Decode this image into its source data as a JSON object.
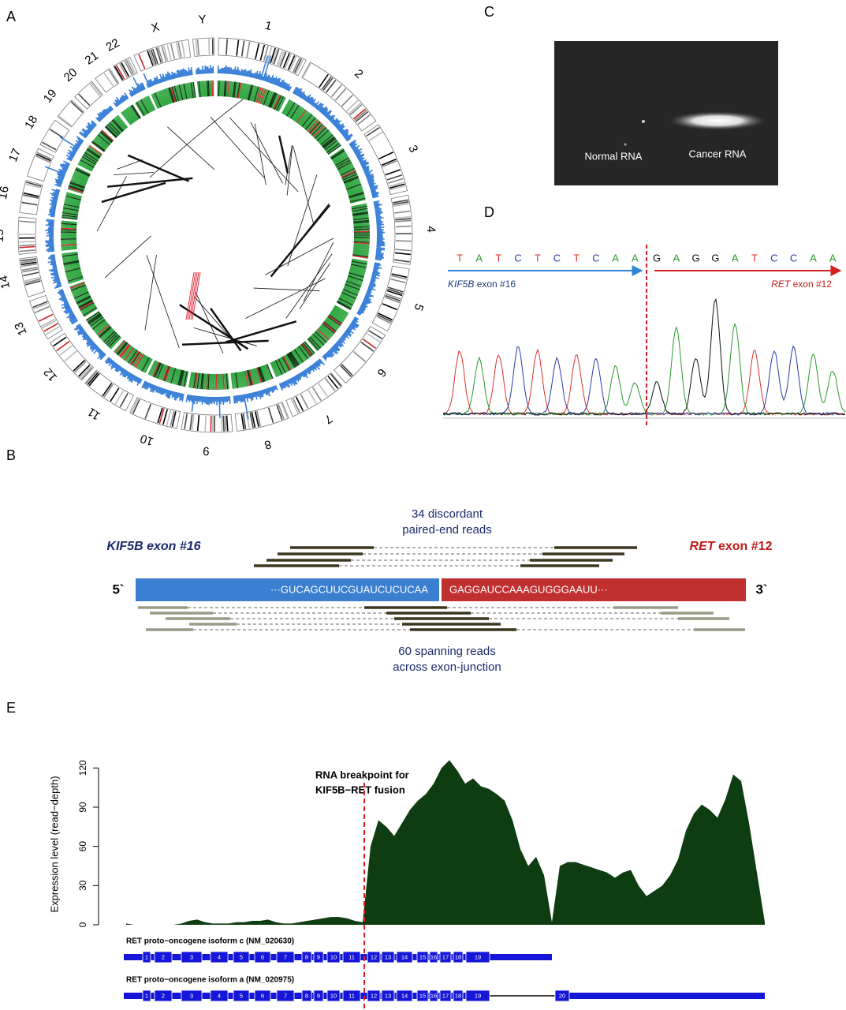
{
  "panel_a": {
    "label": "A",
    "chromosomes": [
      "1",
      "2",
      "3",
      "4",
      "5",
      "6",
      "7",
      "8",
      "9",
      "10",
      "11",
      "12",
      "13",
      "14",
      "15",
      "16",
      "17",
      "18",
      "19",
      "20",
      "21",
      "22",
      "X",
      "Y"
    ]
  },
  "panel_b": {
    "label": "B",
    "top_caption": [
      "34 discordant",
      "paired-end reads"
    ],
    "left_gene": "KIF5B",
    "left_exon": "exon #16",
    "right_gene": "RET",
    "right_exon": "exon #12",
    "five_prime": "5`",
    "three_prime": "3`",
    "left_sequence": "···GUCAGCUUCGUAUCUCUCAA",
    "right_sequence": "GAGGAUCCAAAGUGGGAAUU···",
    "bottom_caption": [
      "60 spanning reads",
      "across exon-junction"
    ]
  },
  "panel_c": {
    "label": "C",
    "lanes": [
      "Normal RNA",
      "Cancer RNA"
    ]
  },
  "panel_d": {
    "label": "D",
    "left_bases": [
      "T",
      "A",
      "T",
      "C",
      "T",
      "C",
      "T",
      "C",
      "A",
      "A"
    ],
    "right_bases": [
      "G",
      "A",
      "G",
      "G",
      "A",
      "T",
      "C",
      "C",
      "A",
      "A"
    ],
    "left_gene": "KIF5B",
    "left_exon": "exon #16",
    "right_gene": "RET",
    "right_exon": "exon #12"
  },
  "chart_data": {
    "type": "area",
    "label": "E",
    "ylabel": "Expression level (read−depth)",
    "annotation": [
      "RNA breakpoint for",
      "KIF5B−RET fusion"
    ],
    "values": [
      1,
      0,
      0,
      0,
      0,
      0,
      0,
      1,
      3,
      4,
      2,
      1,
      1,
      1,
      2,
      2,
      3,
      3,
      4,
      2,
      1,
      1,
      2,
      3,
      4,
      5,
      6,
      6,
      5,
      3,
      2,
      60,
      80,
      75,
      68,
      78,
      88,
      95,
      100,
      108,
      120,
      126,
      118,
      108,
      112,
      106,
      104,
      100,
      95,
      80,
      58,
      45,
      52,
      38,
      2,
      45,
      48,
      48,
      46,
      44,
      42,
      40,
      36,
      40,
      42,
      30,
      22,
      26,
      30,
      38,
      50,
      72,
      85,
      92,
      88,
      82,
      96,
      115,
      110,
      78,
      40,
      2
    ],
    "color": "#0f3d12",
    "ylim": [
      0,
      125
    ],
    "yticks": [
      0,
      30,
      60,
      90,
      120
    ],
    "tracks": [
      {
        "name": "RET proto−oncogene isoform c (NM_020630)",
        "exons": [
          "1",
          "2",
          "3",
          "4",
          "5",
          "6",
          "7",
          "8",
          "9",
          "10",
          "11",
          "12",
          "13",
          "14",
          "15",
          "16",
          "17",
          "18",
          "19"
        ]
      },
      {
        "name": "RET proto−oncogene isoform a (NM_020975)",
        "exons": [
          "1",
          "2",
          "3",
          "4",
          "5",
          "6",
          "7",
          "8",
          "9",
          "10",
          "11",
          "12",
          "13",
          "14",
          "15",
          "16",
          "17",
          "18",
          "19",
          "20"
        ]
      }
    ]
  }
}
